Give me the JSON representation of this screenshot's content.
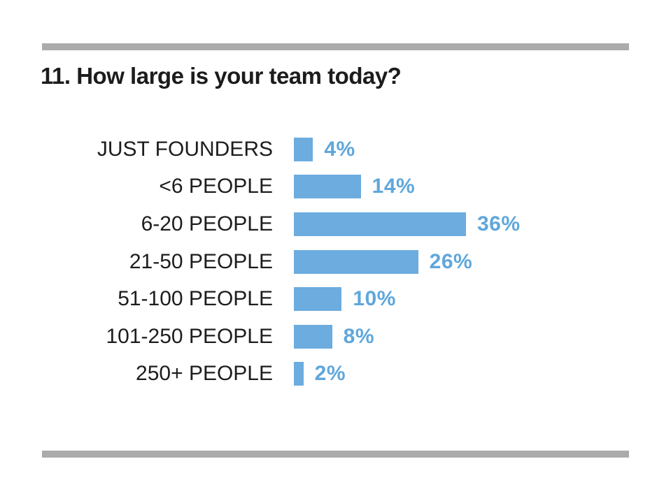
{
  "title": "11. How large is your team today?",
  "decor": {
    "rule_color": "#ababab"
  },
  "chart_data": {
    "type": "bar",
    "orientation": "horizontal",
    "title": "11. How large is your team today?",
    "categories": [
      "JUST FOUNDERS",
      "<6 PEOPLE",
      "6-20 PEOPLE",
      "21-50 PEOPLE",
      "51-100 PEOPLE",
      "101-250 PEOPLE",
      "250+ PEOPLE"
    ],
    "values": [
      4,
      14,
      36,
      26,
      10,
      8,
      2
    ],
    "value_labels": [
      "4%",
      "14%",
      "36%",
      "26%",
      "10%",
      "8%",
      "2%"
    ],
    "value_suffix": "%",
    "xlim": [
      0,
      36
    ],
    "grid": false,
    "legend": false,
    "bar_color": "#6cacdf",
    "value_label_color": "#5fa7db",
    "category_label_color": "#1d1d1d"
  }
}
